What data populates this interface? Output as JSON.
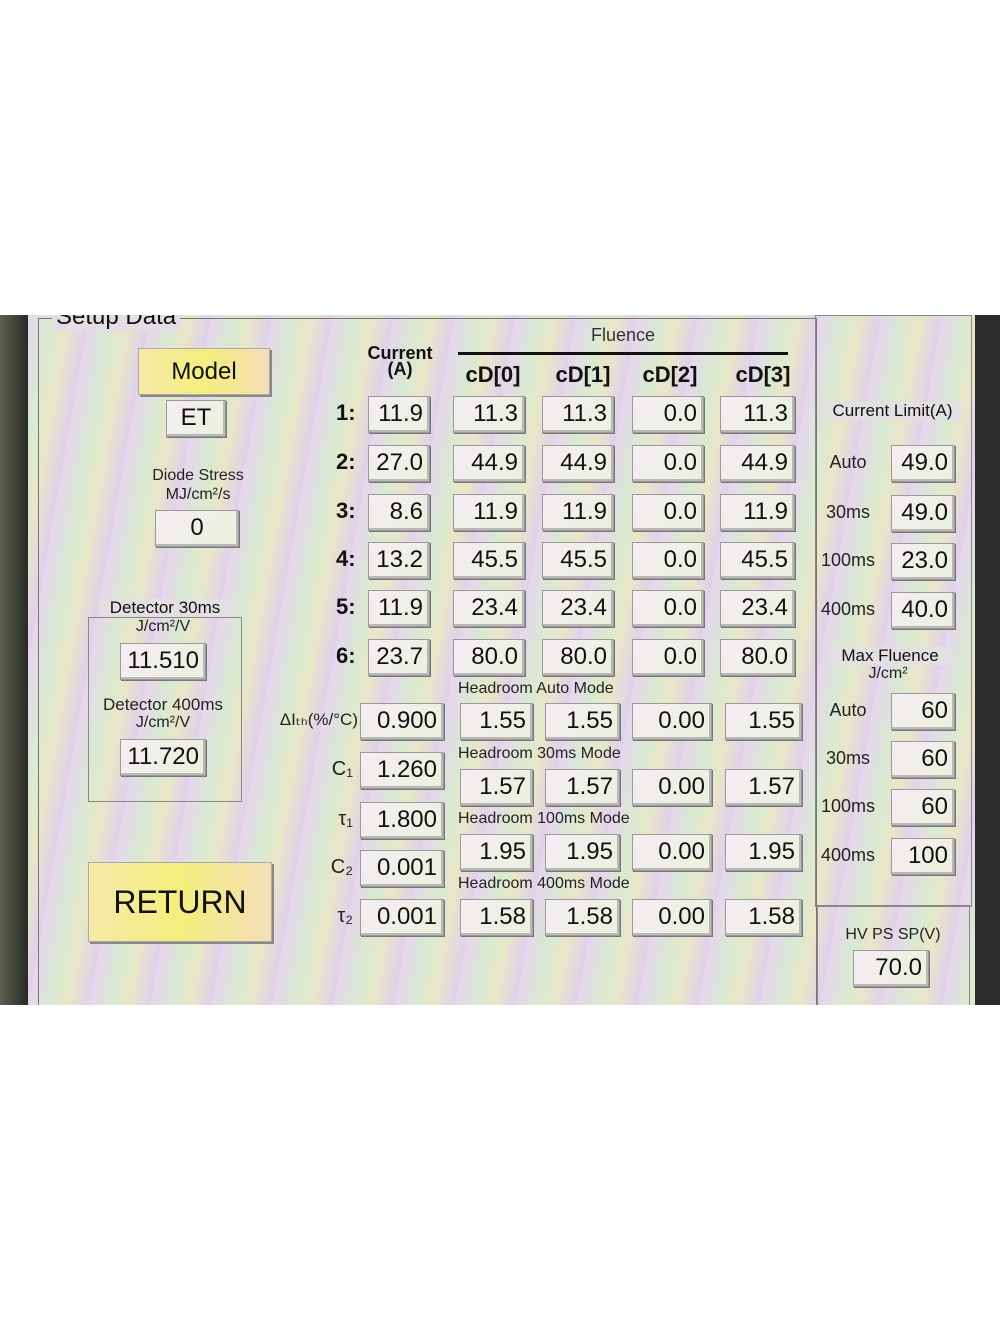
{
  "title": "Setup Data",
  "model": {
    "button": "Model",
    "value": "ET"
  },
  "diode_stress": {
    "label": "Diode Stress",
    "unit": "MJ/cm²/s",
    "value": "0"
  },
  "detector_30": {
    "label": "Detector 30ms",
    "unit": "J/cm²/V",
    "value": "11.510"
  },
  "detector_400": {
    "label": "Detector 400ms",
    "unit": "J/cm²/V",
    "value": "11.720"
  },
  "return_button": "RETURN",
  "current": {
    "header1": "Current",
    "header2": "(A)"
  },
  "fluence": {
    "header": "Fluence",
    "columns": [
      "cD[0]",
      "cD[1]",
      "cD[2]",
      "cD[3]"
    ]
  },
  "rows": [
    {
      "label": "1:",
      "current": "11.9",
      "cd": [
        "11.3",
        "11.3",
        "0.0",
        "11.3"
      ]
    },
    {
      "label": "2:",
      "current": "27.0",
      "cd": [
        "44.9",
        "44.9",
        "0.0",
        "44.9"
      ]
    },
    {
      "label": "3:",
      "current": "8.6",
      "cd": [
        "11.9",
        "11.9",
        "0.0",
        "11.9"
      ]
    },
    {
      "label": "4:",
      "current": "13.2",
      "cd": [
        "45.5",
        "45.5",
        "0.0",
        "45.5"
      ]
    },
    {
      "label": "5:",
      "current": "11.9",
      "cd": [
        "23.4",
        "23.4",
        "0.0",
        "23.4"
      ]
    },
    {
      "label": "6:",
      "current": "23.7",
      "cd": [
        "80.0",
        "80.0",
        "0.0",
        "80.0"
      ]
    }
  ],
  "params": [
    {
      "label": "ΔIₜₕ(%/°C)",
      "value": "0.900"
    },
    {
      "label": "C₁",
      "value": "1.260"
    },
    {
      "label": "τ₁",
      "value": "1.800"
    },
    {
      "label": "C₂",
      "value": "0.001"
    },
    {
      "label": "τ₂",
      "value": "0.001"
    }
  ],
  "headroom": [
    {
      "label": "Headroom Auto Mode",
      "values": [
        "1.55",
        "1.55",
        "0.00",
        "1.55"
      ]
    },
    {
      "label": "Headroom 30ms Mode",
      "values": [
        "1.57",
        "1.57",
        "0.00",
        "1.57"
      ]
    },
    {
      "label": "Headroom 100ms Mode",
      "values": [
        "1.95",
        "1.95",
        "0.00",
        "1.95"
      ]
    },
    {
      "label": "Headroom 400ms Mode",
      "values": [
        "1.58",
        "1.58",
        "0.00",
        "1.58"
      ]
    }
  ],
  "current_limit": {
    "label": "Current Limit(A)",
    "rows": [
      {
        "label": "Auto",
        "value": "49.0"
      },
      {
        "label": "30ms",
        "value": "49.0"
      },
      {
        "label": "100ms",
        "value": "23.0"
      },
      {
        "label": "400ms",
        "value": "40.0"
      }
    ]
  },
  "max_fluence": {
    "label": "Max Fluence",
    "unit": "J/cm²",
    "rows": [
      {
        "label": "Auto",
        "value": "60"
      },
      {
        "label": "30ms",
        "value": "60"
      },
      {
        "label": "100ms",
        "value": "60"
      },
      {
        "label": "400ms",
        "value": "100"
      }
    ]
  },
  "hv_ps": {
    "label": "HV PS SP(V)",
    "value": "70.0"
  }
}
